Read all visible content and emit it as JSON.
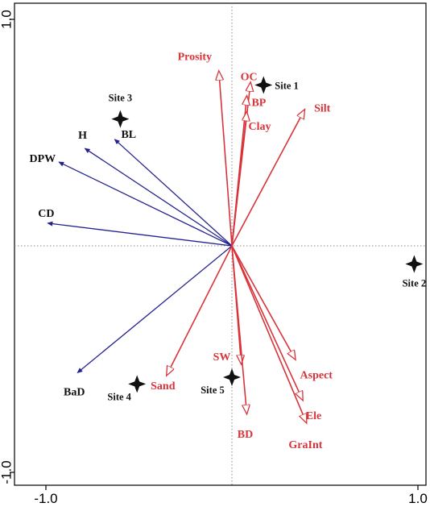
{
  "chart_data": {
    "type": "biplot",
    "xlim": [
      -1.05,
      1.05
    ],
    "ylim": [
      -1.05,
      1.05
    ],
    "x_tick_labels": [
      {
        "value": -1.0,
        "label": "-1.0"
      },
      {
        "value": 1.0,
        "label": "1.0"
      }
    ],
    "y_tick_labels": [
      {
        "value": 1.0,
        "label": "1.0"
      },
      {
        "value": -1.0,
        "label": "-1.0"
      }
    ],
    "origin_lines": "dotted",
    "colors": {
      "forest_vectors": "#23238e",
      "soil_vectors": "#d9333a",
      "sites": "#111111",
      "site_labels": "#111111"
    },
    "forest_vectors": [
      {
        "name": "H",
        "x": -0.79,
        "y": 0.43
      },
      {
        "name": "BL",
        "x": -0.63,
        "y": 0.47
      },
      {
        "name": "DPW",
        "x": -0.93,
        "y": 0.37
      },
      {
        "name": "CD",
        "x": -0.99,
        "y": 0.1
      },
      {
        "name": "BaD",
        "x": -0.83,
        "y": -0.56
      }
    ],
    "soil_vectors": [
      {
        "name": "Prosity",
        "x": -0.07,
        "y": 0.77
      },
      {
        "name": "OC",
        "x": 0.1,
        "y": 0.72
      },
      {
        "name": "BP",
        "x": 0.08,
        "y": 0.66
      },
      {
        "name": "Clay",
        "x": 0.08,
        "y": 0.59
      },
      {
        "name": "Silt",
        "x": 0.39,
        "y": 0.6
      },
      {
        "name": "SW",
        "x": 0.05,
        "y": -0.52
      },
      {
        "name": "Sand",
        "x": -0.35,
        "y": -0.57
      },
      {
        "name": "BD",
        "x": 0.08,
        "y": -0.74
      },
      {
        "name": "Aspect",
        "x": 0.34,
        "y": -0.5
      },
      {
        "name": "Ele",
        "x": 0.38,
        "y": -0.68
      },
      {
        "name": "GraInt",
        "x": 0.4,
        "y": -0.78
      }
    ],
    "sites": [
      {
        "name": "Site 1",
        "x": 0.17,
        "y": 0.71
      },
      {
        "name": "Site 2",
        "x": 0.98,
        "y": -0.08
      },
      {
        "name": "Site 3",
        "x": -0.6,
        "y": 0.56
      },
      {
        "name": "Site 4",
        "x": -0.51,
        "y": -0.61
      },
      {
        "name": "Site 5",
        "x": 0.0,
        "y": -0.58
      }
    ]
  }
}
